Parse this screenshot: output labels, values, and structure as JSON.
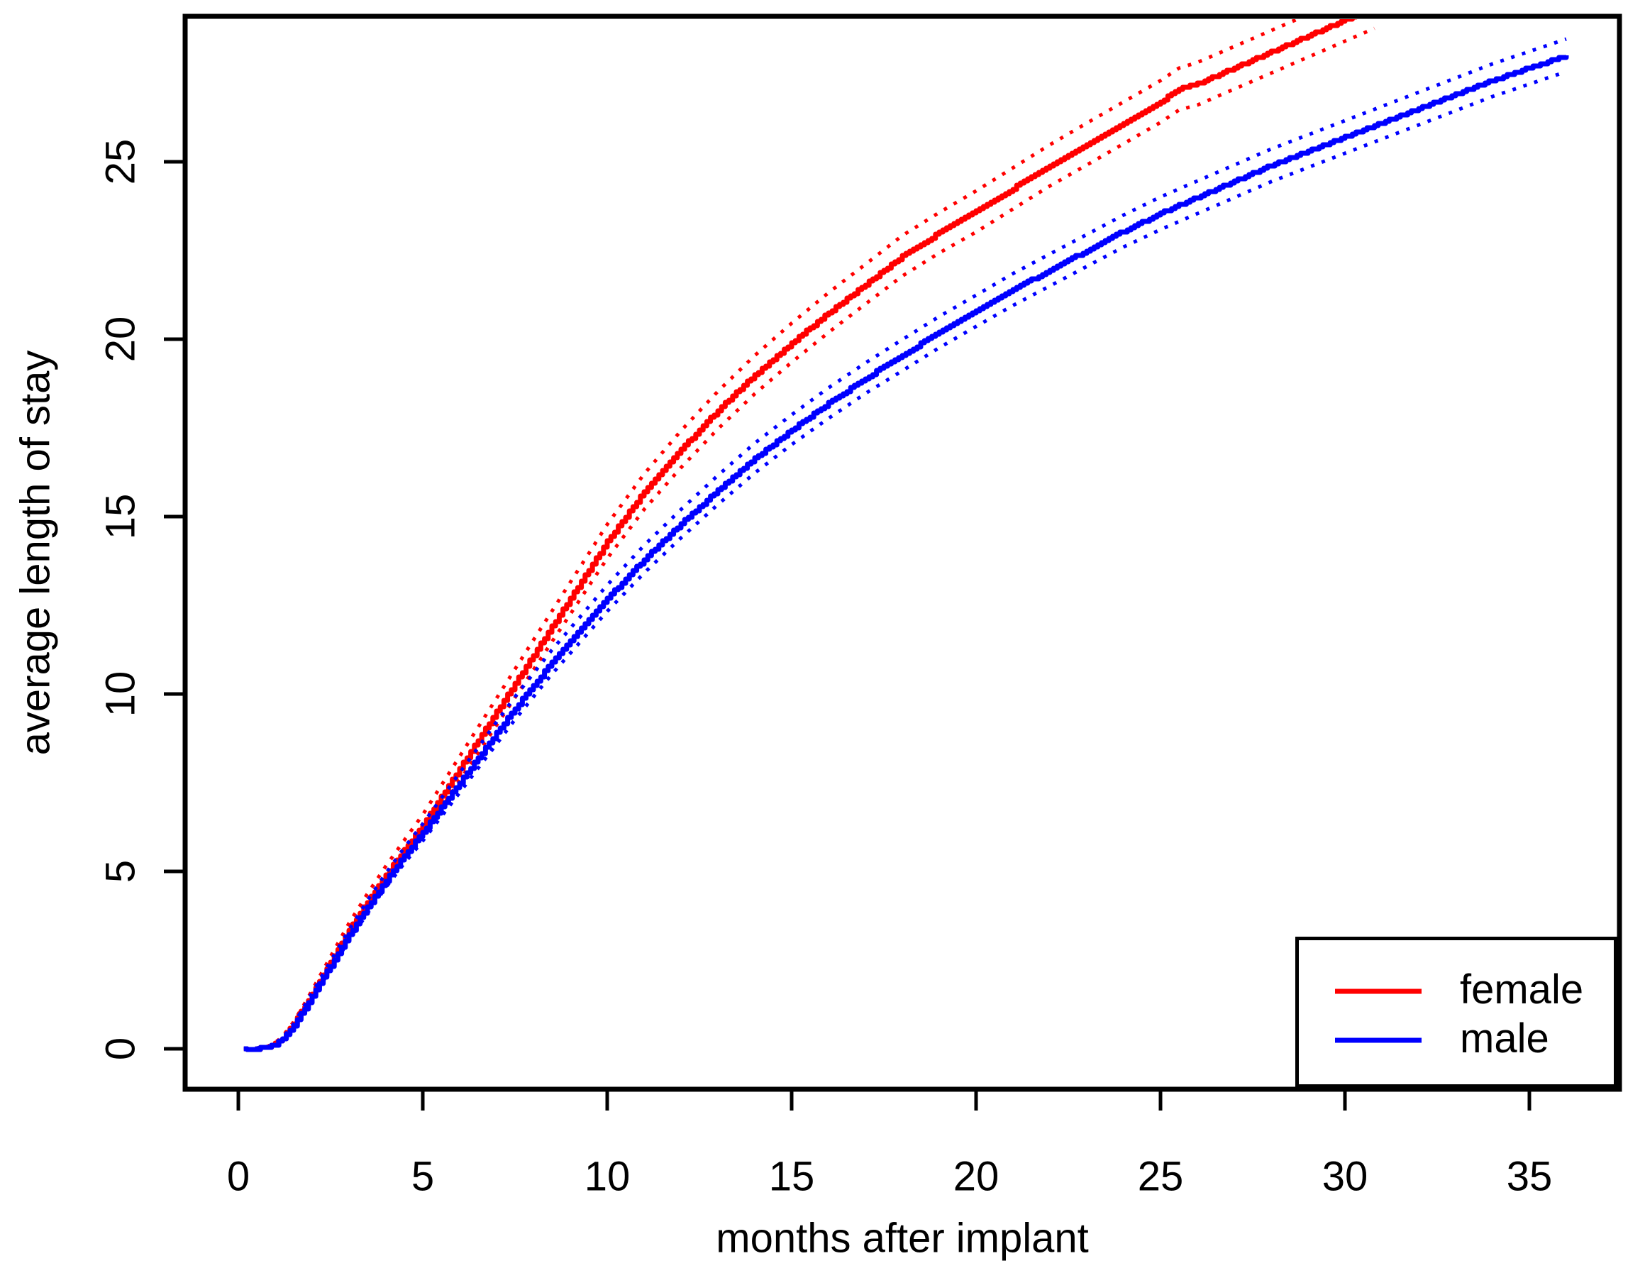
{
  "figure": {
    "background": "#FFFFFF",
    "text_color": "#000000"
  },
  "chart_data": {
    "type": "line",
    "title": "",
    "xlabel": "months after implant",
    "ylabel": "average length of stay",
    "xlim": [
      0,
      36
    ],
    "ylim": [
      0,
      28
    ],
    "x_ticks": [
      0,
      5,
      10,
      15,
      20,
      25,
      30,
      35
    ],
    "y_ticks": [
      0,
      5,
      10,
      15,
      20,
      25
    ],
    "grid": false,
    "legend": {
      "position": "bottomright",
      "items": [
        {
          "label": "female",
          "color": "#FF0000"
        },
        {
          "label": "male",
          "color": "#0000FF"
        }
      ]
    },
    "series": [
      {
        "name": "female",
        "color": "#FF0000",
        "line_style": "solid",
        "ci_line_style": "dotted",
        "x": [
          0.15,
          0.5,
          0.8,
          1.0,
          1.2,
          1.5,
          1.8,
          2.0,
          2.5,
          3.0,
          3.5,
          4.0,
          4.5,
          5.0,
          5.5,
          6.0,
          6.5,
          7.0,
          7.5,
          8.0,
          8.5,
          9.0,
          9.5,
          10.0,
          11.0,
          12.0,
          13.0,
          14.0,
          15.0,
          16.0,
          17.0,
          18.0,
          19.0,
          20.0,
          21.0,
          22.0,
          23.0,
          24.0,
          25.0,
          25.5,
          26.0,
          27.0,
          28.0,
          29.0,
          30.0,
          30.8
        ],
        "y": [
          0,
          0.01,
          0.05,
          0.15,
          0.3,
          0.7,
          1.2,
          1.55,
          2.45,
          3.35,
          4.15,
          4.9,
          5.6,
          6.3,
          7.1,
          7.9,
          8.7,
          9.5,
          10.3,
          11.1,
          11.9,
          12.7,
          13.5,
          14.3,
          15.7,
          16.9,
          18.0,
          19.0,
          19.9,
          20.75,
          21.55,
          22.35,
          23.0,
          23.6,
          24.25,
          24.9,
          25.5,
          26.1,
          26.7,
          27.05,
          27.2,
          27.65,
          28.1,
          28.55,
          29.0,
          29.36
        ],
        "ci_halfwidth": [
          0,
          0.01,
          0.02,
          0.03,
          0.04,
          0.06,
          0.08,
          0.1,
          0.15,
          0.19,
          0.22,
          0.25,
          0.28,
          0.3,
          0.32,
          0.34,
          0.36,
          0.38,
          0.4,
          0.42,
          0.43,
          0.45,
          0.46,
          0.48,
          0.5,
          0.52,
          0.53,
          0.54,
          0.55,
          0.56,
          0.56,
          0.57,
          0.57,
          0.58,
          0.58,
          0.58,
          0.59,
          0.59,
          0.59,
          0.59,
          0.6,
          0.6,
          0.6,
          0.6,
          0.6,
          0.6
        ]
      },
      {
        "name": "male",
        "color": "#0000FF",
        "line_style": "solid",
        "ci_line_style": "dotted",
        "x": [
          0.15,
          0.5,
          0.8,
          1.0,
          1.2,
          1.5,
          1.8,
          2.0,
          2.5,
          3.0,
          3.5,
          4.0,
          4.5,
          5.0,
          5.5,
          6.0,
          6.5,
          7.0,
          7.5,
          8.0,
          8.5,
          9.0,
          9.5,
          10.0,
          11.0,
          12.0,
          13.0,
          14.0,
          15.0,
          16.0,
          17.0,
          18.0,
          19.0,
          20.0,
          21.0,
          22.0,
          23.0,
          24.0,
          25.0,
          26.0,
          27.0,
          28.0,
          29.0,
          30.0,
          31.0,
          32.0,
          33.0,
          34.0,
          35.0,
          36.0
        ],
        "y": [
          0,
          0.01,
          0.05,
          0.13,
          0.28,
          0.65,
          1.15,
          1.5,
          2.35,
          3.2,
          4.0,
          4.75,
          5.45,
          6.1,
          6.8,
          7.5,
          8.2,
          8.9,
          9.6,
          10.25,
          10.9,
          11.5,
          12.1,
          12.7,
          13.8,
          14.8,
          15.75,
          16.65,
          17.45,
          18.2,
          18.9,
          19.55,
          20.2,
          20.8,
          21.4,
          21.95,
          22.5,
          23.05,
          23.55,
          24.0,
          24.45,
          24.9,
          25.3,
          25.7,
          26.1,
          26.5,
          26.9,
          27.3,
          27.65,
          28.0
        ],
        "ci_halfwidth": [
          0,
          0.01,
          0.01,
          0.02,
          0.03,
          0.05,
          0.07,
          0.08,
          0.12,
          0.15,
          0.18,
          0.2,
          0.22,
          0.24,
          0.26,
          0.28,
          0.29,
          0.31,
          0.32,
          0.33,
          0.34,
          0.35,
          0.36,
          0.37,
          0.39,
          0.4,
          0.41,
          0.42,
          0.42,
          0.43,
          0.43,
          0.44,
          0.44,
          0.44,
          0.45,
          0.45,
          0.45,
          0.45,
          0.46,
          0.46,
          0.46,
          0.46,
          0.46,
          0.46,
          0.46,
          0.46,
          0.46,
          0.46,
          0.46,
          0.46
        ]
      }
    ]
  }
}
